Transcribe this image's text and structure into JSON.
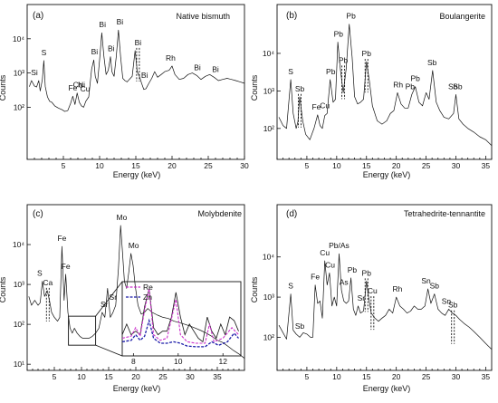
{
  "chart_data": [
    {
      "type": "line",
      "panel": "(a)",
      "title": "Native bismuth",
      "xlabel": "Energy (keV)",
      "ylabel": "Counts",
      "xlim": [
        0,
        30
      ],
      "ylim": [
        3,
        100000
      ],
      "yscale": "log",
      "xticks": [
        5,
        10,
        15,
        20,
        25,
        30
      ],
      "yticks": [
        100,
        1000,
        10000
      ],
      "ytick_labels": [
        "10²",
        "10³",
        "10⁴"
      ],
      "series": [
        {
          "x": [
            0.3,
            0.6,
            1.0,
            1.3,
            1.6,
            1.8,
            2.1,
            2.3,
            2.5,
            2.8,
            3.1,
            3.4,
            3.8,
            4.3,
            4.8,
            5.2,
            5.6,
            6.0,
            6.3,
            6.6,
            6.9,
            7.2,
            7.5,
            7.8,
            8.1,
            8.5,
            8.9,
            9.2,
            9.4,
            9.7,
            10.0,
            10.3,
            10.6,
            10.9,
            11.2,
            11.5,
            11.7,
            12.0,
            12.3,
            12.6,
            12.9,
            13.2,
            13.5,
            13.8,
            14.1,
            14.5,
            14.9,
            15.2,
            15.5,
            15.8,
            16.1,
            16.4,
            16.8,
            17.2,
            17.6,
            18.0,
            18.5,
            19.0,
            19.6,
            20.0,
            20.4,
            21.0,
            21.6,
            22.2,
            22.8,
            23.4,
            24.0,
            24.6,
            25.2,
            25.8,
            26.4,
            27.0,
            27.6,
            28.2,
            28.8,
            29.4,
            30.0
          ],
          "y": [
            400,
            600,
            420,
            390,
            600,
            300,
            650,
            2300,
            400,
            200,
            150,
            140,
            110,
            95,
            85,
            75,
            80,
            130,
            210,
            120,
            260,
            140,
            110,
            100,
            150,
            200,
            1300,
            2400,
            800,
            500,
            2400,
            15000,
            3000,
            900,
            1200,
            3000,
            1100,
            800,
            3000,
            18000,
            3000,
            700,
            600,
            550,
            650,
            800,
            4500,
            1100,
            800,
            500,
            330,
            350,
            500,
            700,
            1100,
            750,
            900,
            1100,
            1200,
            1600,
            900,
            650,
            700,
            900,
            1000,
            850,
            650,
            800,
            900,
            750,
            600,
            650,
            700,
            650,
            600,
            550,
            500
          ]
        }
      ],
      "annotations": [
        "Si",
        "S",
        "Fe",
        "Co",
        "Ni",
        "Cu",
        "Bi",
        "Bi",
        "Bi",
        "Bi",
        "Bi",
        "Bi",
        "Rh",
        "Bi",
        "Bi"
      ]
    },
    {
      "type": "line",
      "panel": "(b)",
      "title": "Boulangerite",
      "xlabel": "Energy (keV)",
      "ylabel": "Counts",
      "xlim": [
        0,
        36
      ],
      "ylim": [
        15,
        200000
      ],
      "yscale": "log",
      "xticks": [
        5,
        10,
        15,
        20,
        25,
        30,
        35
      ],
      "yticks": [
        100,
        1000,
        10000
      ],
      "ytick_labels": [
        "10²",
        "10³",
        "10⁴"
      ],
      "series": [
        {
          "x": [
            0.3,
            1.0,
            1.6,
            2.3,
            2.7,
            3.2,
            3.5,
            3.8,
            4.3,
            4.8,
            5.5,
            6.2,
            6.8,
            7.2,
            7.6,
            8.0,
            8.4,
            8.9,
            9.4,
            9.8,
            10.2,
            10.6,
            11.1,
            11.6,
            12.1,
            12.6,
            13.0,
            13.5,
            14.0,
            14.5,
            15.0,
            15.5,
            16.0,
            16.8,
            17.6,
            18.4,
            19.0,
            19.6,
            20.2,
            20.8,
            21.4,
            22.0,
            22.6,
            23.2,
            23.8,
            24.4,
            25.0,
            25.5,
            26.1,
            26.7,
            27.3,
            28.0,
            28.8,
            29.6,
            30.0,
            30.5,
            31.2,
            32.0,
            33.0,
            34.0,
            35.0,
            36.0
          ],
          "y": [
            200,
            120,
            100,
            2000,
            250,
            100,
            150,
            700,
            160,
            70,
            50,
            100,
            230,
            120,
            100,
            220,
            250,
            2000,
            500,
            600,
            20000,
            4000,
            900,
            4000,
            60000,
            8000,
            700,
            450,
            500,
            600,
            6000,
            1800,
            400,
            160,
            130,
            160,
            250,
            300,
            900,
            450,
            350,
            350,
            800,
            1300,
            500,
            400,
            900,
            600,
            3500,
            500,
            300,
            200,
            180,
            250,
            800,
            180,
            130,
            100,
            80,
            60,
            50,
            35
          ]
        }
      ],
      "annotations": [
        "S",
        "Sb",
        "Fe",
        "Cu",
        "Pb",
        "Pb",
        "Pb",
        "Pb",
        "Pb",
        "Rh",
        "Pb",
        "Pb",
        "Sb",
        "Sb",
        "Sb",
        "Sb"
      ]
    },
    {
      "type": "line",
      "panel": "(c)",
      "title": "Molybdenite",
      "xlabel": "Energy (keV)",
      "ylabel": "Counts",
      "xlim": [
        0,
        40
      ],
      "ylim": [
        7,
        100000
      ],
      "yscale": "log",
      "xticks": [
        5,
        10,
        15,
        20,
        25,
        30,
        35
      ],
      "yticks": [
        10,
        100,
        1000,
        10000
      ],
      "ytick_labels": [
        "10¹",
        "10²",
        "10³",
        "10⁴"
      ],
      "series": [
        {
          "x": [
            0.3,
            0.8,
            1.4,
            2.0,
            2.4,
            2.8,
            3.2,
            3.7,
            4.1,
            4.5,
            5.0,
            5.6,
            6.0,
            6.4,
            6.8,
            7.1,
            7.5,
            7.9,
            8.3,
            8.7,
            9.2,
            9.7,
            10.2,
            10.8,
            11.4,
            12.0,
            12.6,
            13.2,
            13.8,
            14.3,
            14.8,
            15.3,
            15.8,
            16.3,
            16.8,
            17.2,
            17.5,
            17.9,
            18.3,
            18.7,
            19.1,
            19.5,
            19.9,
            20.4,
            21.0,
            21.6,
            22.2,
            23.0,
            24.0,
            25.0,
            26.0,
            27.0,
            28.0,
            29.0,
            30.0,
            31.0,
            32.0,
            33.0,
            34.0,
            35.0,
            36.0,
            37.0,
            38.0,
            39.0,
            40.0
          ],
          "y": [
            500,
            300,
            400,
            300,
            350,
            1200,
            500,
            700,
            400,
            200,
            150,
            120,
            150,
            9000,
            400,
            1800,
            200,
            80,
            60,
            80,
            60,
            50,
            45,
            45,
            45,
            50,
            60,
            80,
            200,
            150,
            800,
            150,
            200,
            300,
            2500,
            30000,
            8000,
            1200,
            800,
            2000,
            6000,
            3000,
            900,
            300,
            180,
            200,
            250,
            200,
            170,
            150,
            140,
            120,
            110,
            100,
            90,
            80,
            70,
            60,
            50,
            40,
            35,
            28,
            22,
            18,
            14
          ]
        }
      ],
      "annotations": [
        "S",
        "Ca",
        "Fe",
        "Fe",
        "Sr",
        "Sr",
        "Mo",
        "Mo"
      ],
      "inset": {
        "xlim": [
          7.5,
          12.8
        ],
        "xticks": [
          8,
          10,
          12
        ],
        "legend": [
          "Re",
          "Zn"
        ],
        "series": [
          {
            "x": [
              7.5,
              7.7,
              7.9,
              8.1,
              8.3,
              8.5,
              8.7,
              8.9,
              9.1,
              9.3,
              9.5,
              9.7,
              9.9,
              10.1,
              10.3,
              10.5,
              10.7,
              10.9,
              11.1,
              11.3,
              11.5,
              11.7,
              11.9,
              12.1,
              12.3,
              12.5,
              12.7
            ],
            "y": [
              0.3,
              0.45,
              0.3,
              0.35,
              0.3,
              0.7,
              0.95,
              0.4,
              0.3,
              0.35,
              0.35,
              0.55,
              0.9,
              0.55,
              0.3,
              0.45,
              0.35,
              0.25,
              0.2,
              0.55,
              0.35,
              0.25,
              0.45,
              0.3,
              0.55,
              0.5,
              0.35
            ]
          },
          {
            "name": "Re",
            "x": [
              7.5,
              7.9,
              8.1,
              8.3,
              8.5,
              8.7,
              8.9,
              9.2,
              9.5,
              9.9,
              10.1,
              10.4,
              10.8,
              11.2,
              11.4,
              11.6,
              12.0,
              12.4,
              12.7
            ],
            "y": [
              0.25,
              0.28,
              0.4,
              0.28,
              0.65,
              0.95,
              0.3,
              0.22,
              0.25,
              0.8,
              0.3,
              0.2,
              0.18,
              0.18,
              0.45,
              0.2,
              0.25,
              0.4,
              0.3
            ]
          },
          {
            "name": "Zn",
            "x": [
              7.5,
              7.9,
              8.1,
              8.3,
              8.5,
              8.7,
              8.9,
              9.2,
              9.5,
              9.8,
              10.1,
              10.4,
              10.8,
              11.2,
              11.5,
              11.8,
              12.2,
              12.5,
              12.7
            ],
            "y": [
              0.2,
              0.22,
              0.3,
              0.22,
              0.28,
              0.5,
              0.25,
              0.18,
              0.18,
              0.2,
              0.18,
              0.14,
              0.13,
              0.13,
              0.2,
              0.15,
              0.2,
              0.32,
              0.25
            ]
          }
        ]
      }
    },
    {
      "type": "line",
      "panel": "(d)",
      "title": "Tetrahedrite-tennantite",
      "xlabel": "Energy (keV)",
      "ylabel": "Counts",
      "xlim": [
        0,
        36
      ],
      "ylim": [
        15,
        200000
      ],
      "yscale": "log",
      "xticks": [
        5,
        10,
        15,
        20,
        25,
        30,
        35
      ],
      "yticks": [
        100,
        1000,
        10000
      ],
      "ytick_labels": [
        "10²",
        "10³",
        "10⁴"
      ],
      "series": [
        {
          "x": [
            0.3,
            1.0,
            1.6,
            2.3,
            2.7,
            3.2,
            3.8,
            4.4,
            5.0,
            5.6,
            6.0,
            6.4,
            6.8,
            7.2,
            7.6,
            8.0,
            8.4,
            8.8,
            9.2,
            9.6,
            10.0,
            10.4,
            10.8,
            11.2,
            11.6,
            12.0,
            12.4,
            12.8,
            13.2,
            13.6,
            14.0,
            14.5,
            15.0,
            15.4,
            15.8,
            16.4,
            17.0,
            17.6,
            18.2,
            18.8,
            19.4,
            20.0,
            20.6,
            21.2,
            21.8,
            22.4,
            23.0,
            23.6,
            24.2,
            24.8,
            25.3,
            25.8,
            26.4,
            27.0,
            27.6,
            28.2,
            28.8,
            29.4,
            30.0,
            30.6,
            31.4,
            32.2,
            33.0,
            34.0,
            35.0,
            36.0
          ],
          "y": [
            200,
            130,
            90,
            1200,
            150,
            120,
            100,
            130,
            120,
            100,
            100,
            2000,
            700,
            800,
            300,
            8000,
            2000,
            4000,
            600,
            1000,
            600,
            12000,
            1500,
            800,
            700,
            800,
            3000,
            500,
            350,
            600,
            400,
            450,
            2500,
            900,
            400,
            300,
            250,
            300,
            350,
            500,
            400,
            1000,
            600,
            500,
            400,
            450,
            600,
            500,
            500,
            600,
            1600,
            700,
            1200,
            500,
            400,
            350,
            500,
            400,
            350,
            280,
            220,
            180,
            140,
            100,
            70,
            50
          ]
        }
      ],
      "annotations": [
        "S",
        "Sb",
        "Fe",
        "Cu",
        "Cu",
        "Pb/As",
        "As",
        "Pb",
        "Sr",
        "Pb",
        "Cu",
        "Rh",
        "Sn",
        "Sb",
        "Sn",
        "Sb"
      ]
    }
  ]
}
